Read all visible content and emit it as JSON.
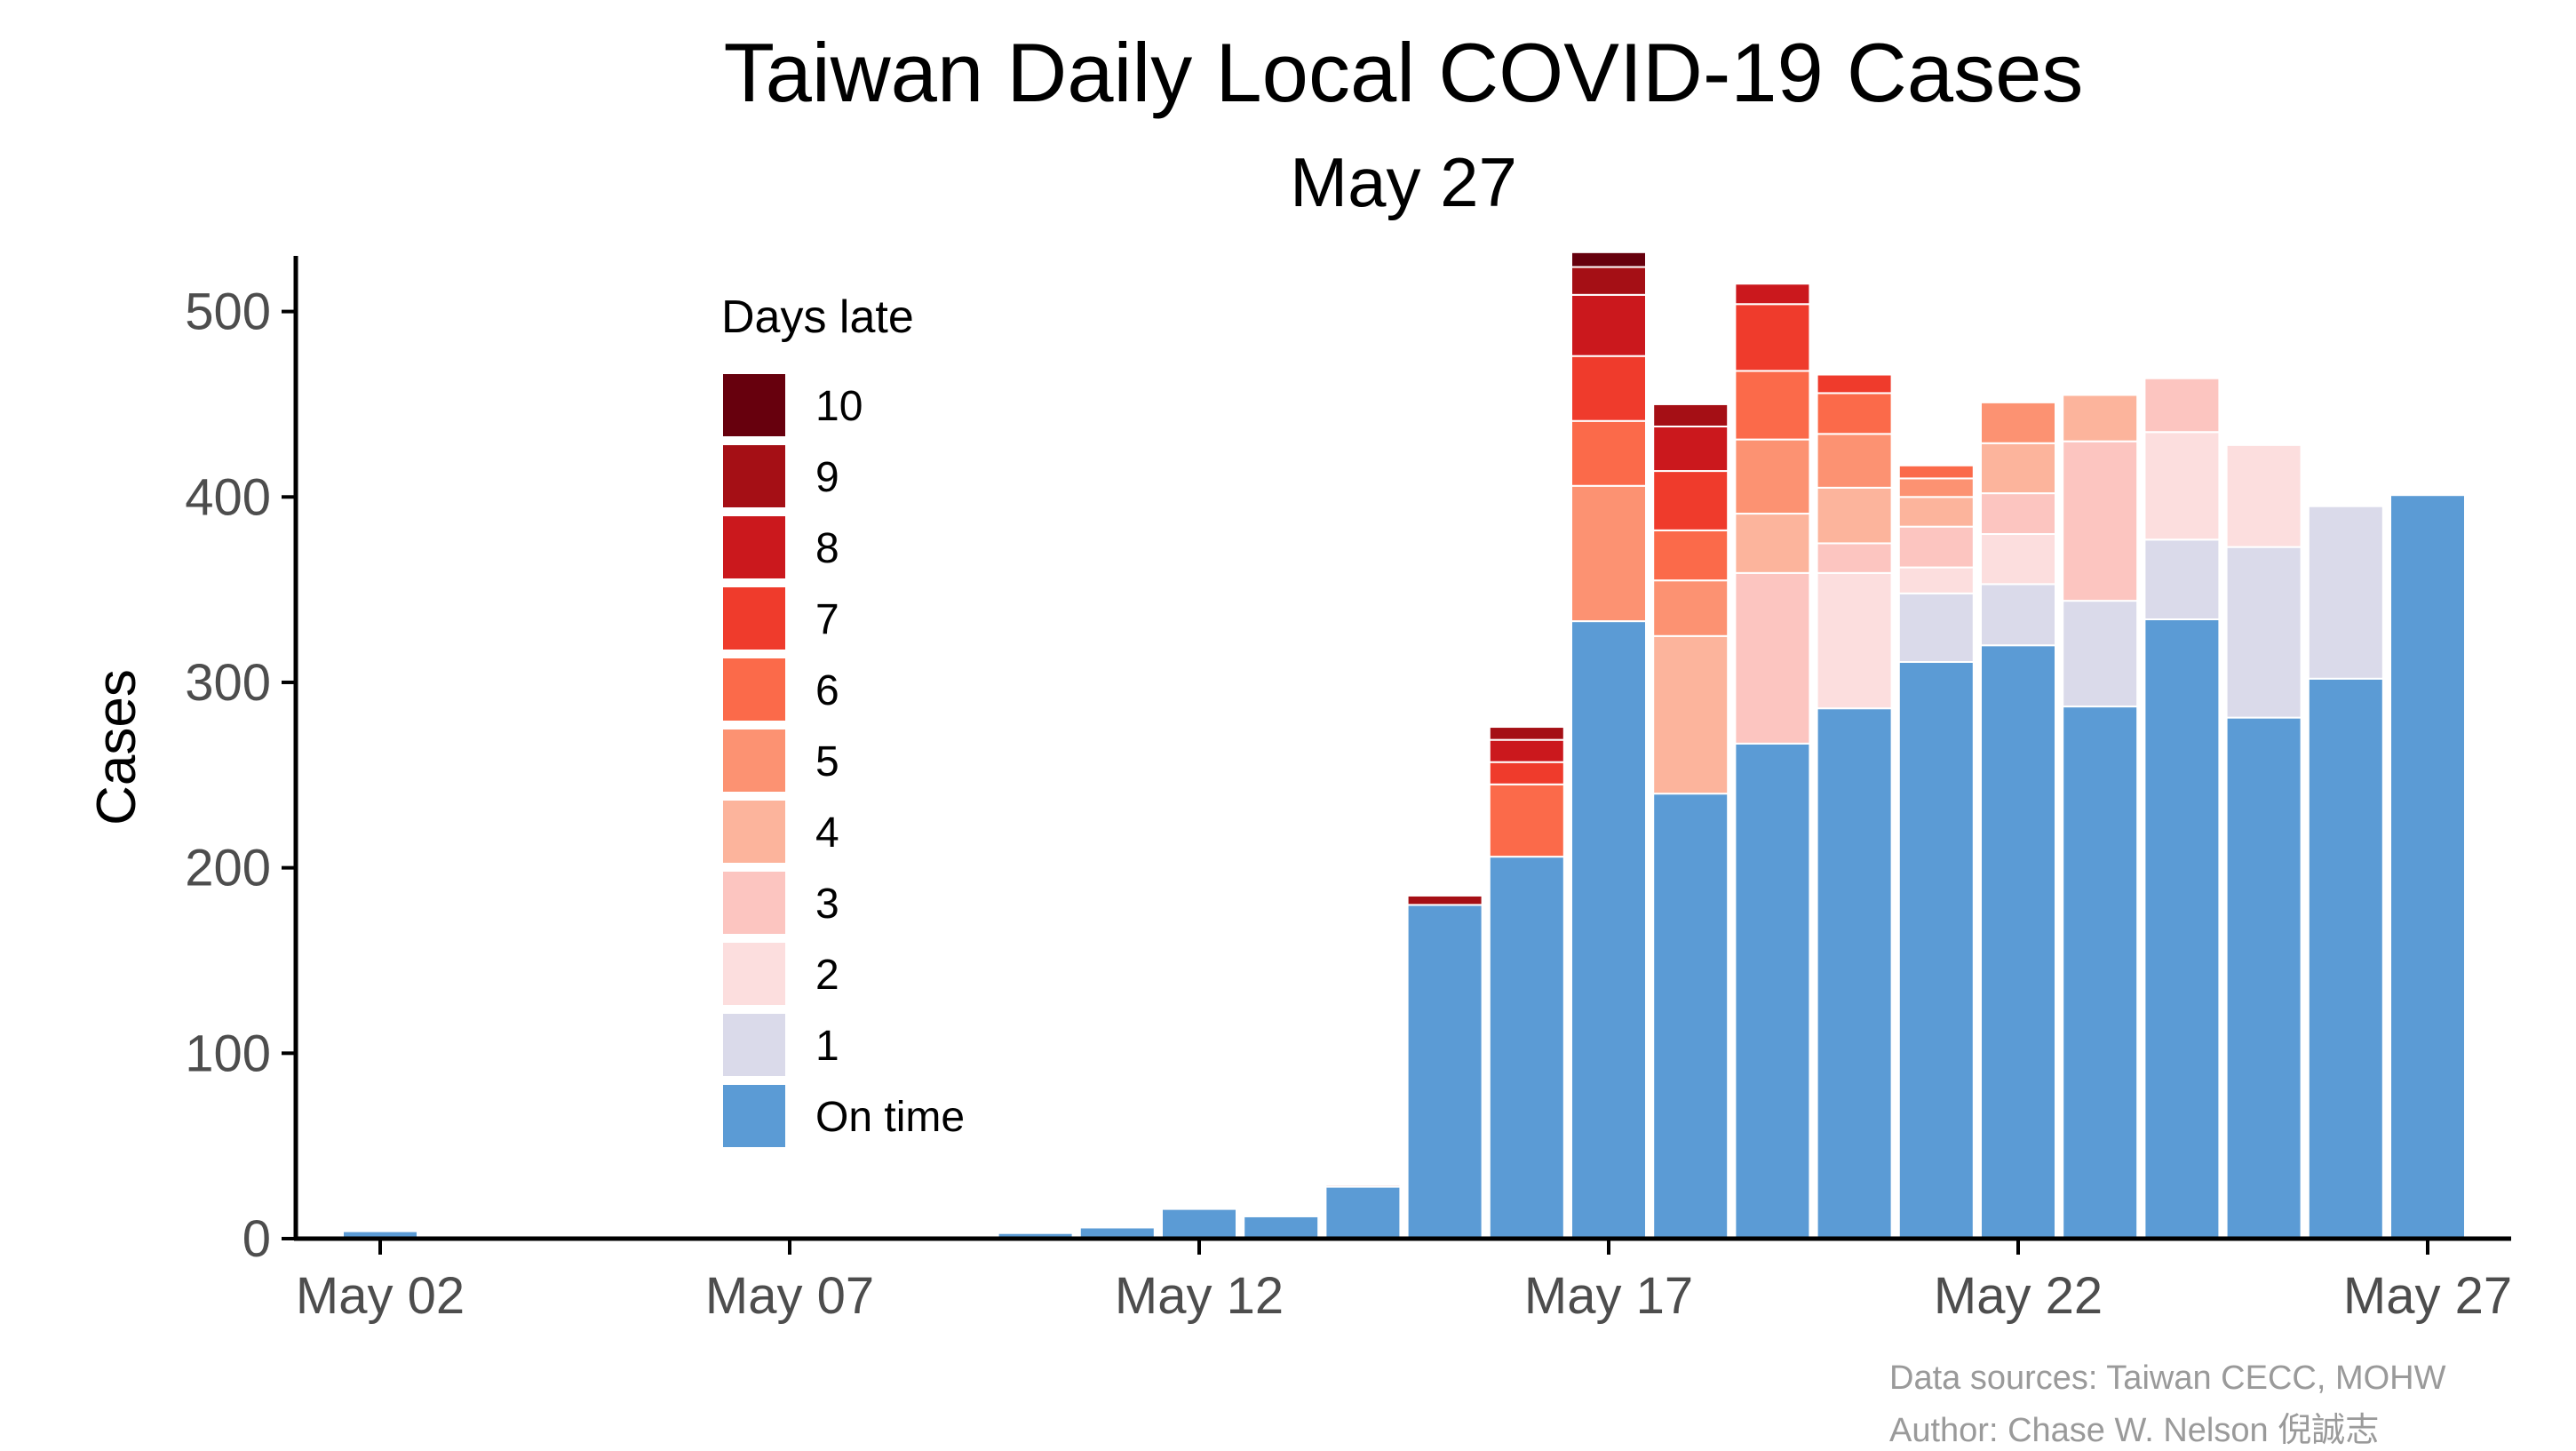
{
  "chart_data": {
    "type": "bar",
    "stacked": true,
    "title": "Taiwan Daily Local COVID-19 Cases",
    "subtitle": "May 27",
    "ylabel": "Cases",
    "xlabel": "",
    "ylim": [
      0,
      530
    ],
    "yticks": [
      0,
      100,
      200,
      300,
      400,
      500
    ],
    "x_tick_labels": [
      "May 02",
      "May 07",
      "May 12",
      "May 17",
      "May 22",
      "May 27"
    ],
    "x_tick_days": [
      2,
      7,
      12,
      17,
      22,
      27
    ],
    "days": [
      2,
      3,
      4,
      5,
      6,
      7,
      8,
      9,
      10,
      11,
      12,
      13,
      14,
      15,
      16,
      17,
      18,
      19,
      20,
      21,
      22,
      23,
      24,
      25,
      26,
      27
    ],
    "legend_title": "Days late",
    "legend_position": "upper-left",
    "series": [
      {
        "name": "On time",
        "color": "#5b9bd5",
        "values": [
          4,
          1,
          1,
          0,
          0,
          1,
          1,
          0,
          3,
          6,
          16,
          12,
          28,
          180,
          206,
          333,
          240,
          267,
          286,
          311,
          320,
          287,
          334,
          281,
          302,
          401
        ]
      },
      {
        "name": "1",
        "color": "#dadaea",
        "values": [
          0,
          0,
          0,
          0,
          0,
          0,
          0,
          0,
          0,
          0,
          0,
          0,
          0,
          0,
          0,
          0,
          0,
          0,
          0,
          37,
          33,
          57,
          43,
          92,
          93,
          0
        ]
      },
      {
        "name": "2",
        "color": "#fcdede",
        "values": [
          0,
          0,
          0,
          0,
          0,
          0,
          0,
          0,
          0,
          0,
          0,
          0,
          0,
          0,
          0,
          0,
          0,
          0,
          73,
          14,
          27,
          0,
          58,
          55,
          0,
          0
        ]
      },
      {
        "name": "3",
        "color": "#fcc5c0",
        "values": [
          0,
          0,
          0,
          0,
          0,
          0,
          0,
          0,
          0,
          0,
          0,
          0,
          0,
          0,
          0,
          0,
          0,
          92,
          16,
          22,
          22,
          86,
          29,
          0,
          0,
          0
        ]
      },
      {
        "name": "4",
        "color": "#fcb49c",
        "values": [
          0,
          0,
          0,
          0,
          0,
          0,
          0,
          0,
          0,
          0,
          0,
          0,
          0,
          0,
          0,
          0,
          85,
          32,
          30,
          16,
          27,
          25,
          0,
          0,
          0,
          0
        ]
      },
      {
        "name": "5",
        "color": "#fc9272",
        "values": [
          0,
          0,
          0,
          0,
          0,
          0,
          0,
          0,
          0,
          0,
          0,
          0,
          0,
          0,
          0,
          73,
          30,
          40,
          29,
          10,
          22,
          0,
          0,
          0,
          0,
          0
        ]
      },
      {
        "name": "6",
        "color": "#fb6a4a",
        "values": [
          0,
          0,
          0,
          0,
          0,
          0,
          0,
          0,
          0,
          0,
          0,
          0,
          0,
          0,
          39,
          35,
          27,
          37,
          22,
          7,
          0,
          0,
          0,
          0,
          0,
          0
        ]
      },
      {
        "name": "7",
        "color": "#ef3b2c",
        "values": [
          0,
          0,
          0,
          0,
          0,
          0,
          0,
          0,
          0,
          0,
          0,
          0,
          0,
          0,
          12,
          35,
          32,
          36,
          10,
          0,
          0,
          0,
          0,
          0,
          0,
          0
        ]
      },
      {
        "name": "8",
        "color": "#cb181d",
        "values": [
          0,
          0,
          0,
          0,
          0,
          0,
          0,
          0,
          0,
          0,
          0,
          0,
          0,
          0,
          12,
          33,
          24,
          11,
          0,
          0,
          0,
          0,
          0,
          0,
          0,
          0
        ]
      },
      {
        "name": "9",
        "color": "#a50f15",
        "values": [
          0,
          0,
          0,
          0,
          0,
          0,
          0,
          0,
          0,
          0,
          0,
          0,
          1,
          5,
          7,
          15,
          12,
          0,
          0,
          0,
          0,
          0,
          0,
          0,
          0,
          0
        ]
      },
      {
        "name": "10",
        "color": "#67000d",
        "values": [
          0,
          0,
          0,
          0,
          0,
          0,
          0,
          0,
          0,
          0,
          0,
          0,
          0,
          0,
          0,
          8,
          0,
          0,
          0,
          0,
          0,
          0,
          0,
          0,
          0,
          0
        ]
      }
    ]
  },
  "credits": {
    "line1": "Data sources: Taiwan CECC, MOHW",
    "line2": "Author: Chase W. Nelson 倪誠志"
  },
  "colors": {
    "on_time": "#5b9bd5",
    "axis": "#000000",
    "tick_label": "#4d4d4d",
    "credit": "#9a9a9a"
  }
}
